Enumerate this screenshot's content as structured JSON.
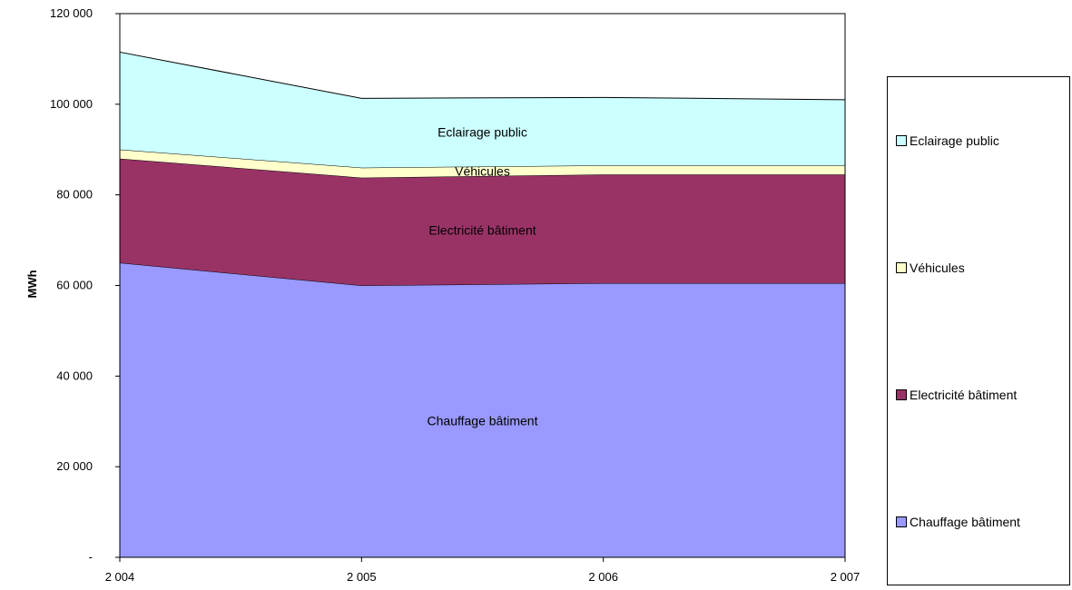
{
  "chart_data": {
    "type": "area",
    "stacked": true,
    "x": [
      "2 004",
      "2 005",
      "2 006",
      "2 007"
    ],
    "ylabel": "MWh",
    "ylim": [
      0,
      120000
    ],
    "ytick_labels": [
      "-",
      "20 000",
      "40 000",
      "60 000",
      "80 000",
      "100 000",
      "120 000"
    ],
    "grid": false,
    "legend_placement": "right",
    "series": [
      {
        "name": "Chauffage bâtiment",
        "color": "#9999ff",
        "values": [
          65000,
          60000,
          60500,
          60500
        ]
      },
      {
        "name": "Electricité bâtiment",
        "color": "#993366",
        "values": [
          23000,
          23800,
          24000,
          24000
        ]
      },
      {
        "name": "Véhicules",
        "color": "#ffffcc",
        "values": [
          2000,
          2200,
          2000,
          2000
        ]
      },
      {
        "name": "Eclairage public",
        "color": "#ccffff",
        "values": [
          21500,
          15300,
          15000,
          14500
        ]
      }
    ]
  }
}
